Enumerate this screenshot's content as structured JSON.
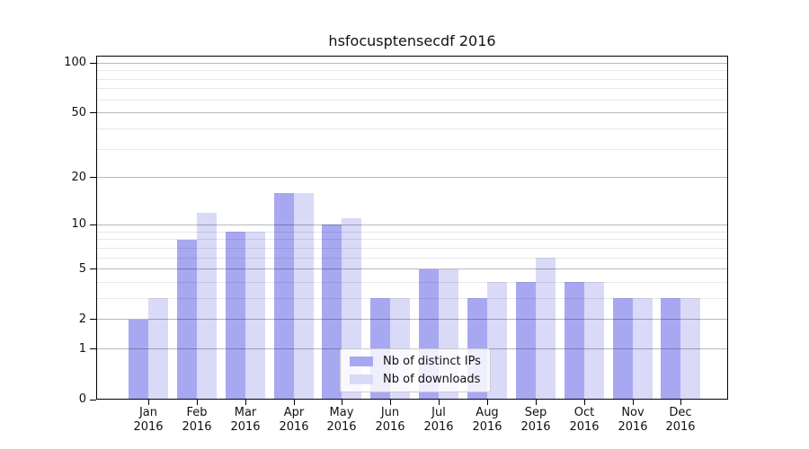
{
  "title": "hsfocusptensecdf 2016",
  "chart_data": {
    "type": "bar",
    "title": "hsfocusptensecdf 2016",
    "categories": [
      "Jan",
      "Feb",
      "Mar",
      "Apr",
      "May",
      "Jun",
      "Jul",
      "Aug",
      "Sep",
      "Oct",
      "Nov",
      "Dec"
    ],
    "x_tick_line2": "2016",
    "series": [
      {
        "name": "Nb of distinct IPs",
        "color": "#a8a8f2",
        "values": [
          2,
          8,
          9,
          16,
          10,
          3,
          5,
          3,
          4,
          4,
          3,
          3
        ]
      },
      {
        "name": "Nb of downloads",
        "color": "#d9d9f8",
        "values": [
          3,
          12,
          9,
          16,
          11,
          3,
          5,
          4,
          6,
          4,
          3,
          3
        ]
      }
    ],
    "xlabel": "",
    "ylabel": "",
    "yscale": "log1p",
    "y_ticks": [
      0,
      1,
      2,
      5,
      10,
      20,
      50,
      100
    ],
    "y_minor_gridlines": [
      3,
      4,
      6,
      7,
      8,
      9,
      30,
      40,
      60,
      70,
      80,
      90
    ],
    "ylim": [
      0,
      111
    ],
    "grid": "both, drawn above bars",
    "legend_position": "lower center"
  }
}
